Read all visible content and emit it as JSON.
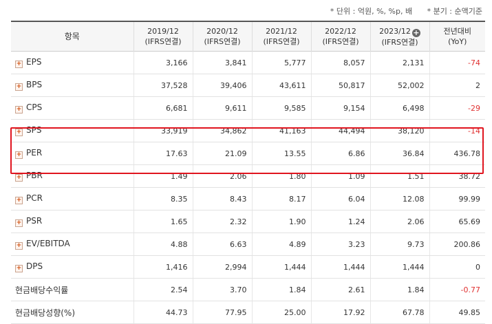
{
  "notes": {
    "unit": "* 단위 : 억원, %, %p, 배",
    "period": "* 분기 : 순액기준"
  },
  "header": {
    "item": "항목",
    "cols": [
      {
        "l1": "2019/12",
        "l2": "(IFRS연결)"
      },
      {
        "l1": "2020/12",
        "l2": "(IFRS연결)"
      },
      {
        "l1": "2021/12",
        "l2": "(IFRS연결)"
      },
      {
        "l1": "2022/12",
        "l2": "(IFRS연결)"
      },
      {
        "l1": "2023/12",
        "l2": "(IFRS연결)"
      },
      {
        "l1": "전년대비",
        "l2": "(YoY)"
      }
    ]
  },
  "rows": [
    {
      "label": "EPS",
      "expand": true,
      "values": [
        "3,166",
        "3,841",
        "5,777",
        "8,057",
        "2,131",
        "-74"
      ]
    },
    {
      "label": "BPS",
      "expand": true,
      "values": [
        "37,528",
        "39,406",
        "43,611",
        "50,817",
        "52,002",
        "2"
      ]
    },
    {
      "label": "CPS",
      "expand": true,
      "values": [
        "6,681",
        "9,611",
        "9,585",
        "9,154",
        "6,498",
        "-29"
      ]
    },
    {
      "label": "SPS",
      "expand": true,
      "values": [
        "33,919",
        "34,862",
        "41,163",
        "44,494",
        "38,120",
        "-14"
      ]
    },
    {
      "label": "PER",
      "expand": true,
      "values": [
        "17.63",
        "21.09",
        "13.55",
        "6.86",
        "36.84",
        "436.78"
      ]
    },
    {
      "label": "PBR",
      "expand": true,
      "values": [
        "1.49",
        "2.06",
        "1.80",
        "1.09",
        "1.51",
        "38.72"
      ]
    },
    {
      "label": "PCR",
      "expand": true,
      "values": [
        "8.35",
        "8.43",
        "8.17",
        "6.04",
        "12.08",
        "99.99"
      ]
    },
    {
      "label": "PSR",
      "expand": true,
      "values": [
        "1.65",
        "2.32",
        "1.90",
        "1.24",
        "2.06",
        "65.69"
      ]
    },
    {
      "label": "EV/EBITDA",
      "expand": true,
      "values": [
        "4.88",
        "6.63",
        "4.89",
        "3.23",
        "9.73",
        "200.86"
      ]
    },
    {
      "label": "DPS",
      "expand": true,
      "values": [
        "1,416",
        "2,994",
        "1,444",
        "1,444",
        "1,444",
        "0"
      ]
    },
    {
      "label": "현금배당수익률",
      "expand": false,
      "values": [
        "2.54",
        "3.70",
        "1.84",
        "2.61",
        "1.84",
        "-0.77"
      ]
    },
    {
      "label": "현금배당성향(%)",
      "expand": false,
      "values": [
        "44.73",
        "77.95",
        "25.00",
        "17.92",
        "67.78",
        "49.85"
      ]
    }
  ],
  "colors": {
    "negative": "#e03030",
    "highlight": "#e0141e"
  }
}
